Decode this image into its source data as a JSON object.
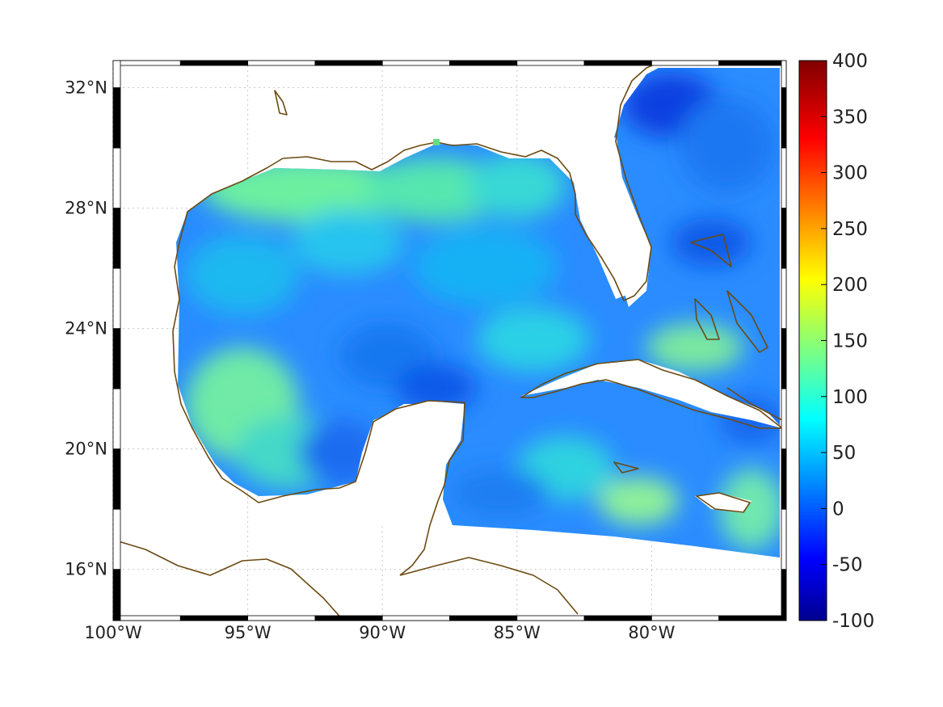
{
  "map": {
    "lon_range": [
      -100,
      -75
    ],
    "lat_range": [
      14.3,
      32.9
    ],
    "lon_ticks": [
      {
        "value": -100,
        "label": "100°W"
      },
      {
        "value": -95,
        "label": "95°W"
      },
      {
        "value": -90,
        "label": "90°W"
      },
      {
        "value": -85,
        "label": "85°W"
      },
      {
        "value": -80,
        "label": "80°W"
      }
    ],
    "lat_ticks": [
      {
        "value": 32,
        "label": "32°N"
      },
      {
        "value": 28,
        "label": "28°N"
      },
      {
        "value": 24,
        "label": "24°N"
      },
      {
        "value": 20,
        "label": "20°N"
      },
      {
        "value": 16,
        "label": "16°N"
      }
    ],
    "grid": true,
    "coastline_color": "#6b4a12",
    "field_colormap": "jet"
  },
  "colorbar": {
    "min": -100,
    "max": 400,
    "ticks": [
      {
        "value": 400,
        "label": "400"
      },
      {
        "value": 350,
        "label": "350"
      },
      {
        "value": 300,
        "label": "300"
      },
      {
        "value": 250,
        "label": "250"
      },
      {
        "value": 200,
        "label": "200"
      },
      {
        "value": 150,
        "label": "150"
      },
      {
        "value": 100,
        "label": "100"
      },
      {
        "value": 50,
        "label": "50"
      },
      {
        "value": 0,
        "label": "0"
      },
      {
        "value": -50,
        "label": "-50"
      },
      {
        "value": -100,
        "label": "-100"
      }
    ]
  }
}
